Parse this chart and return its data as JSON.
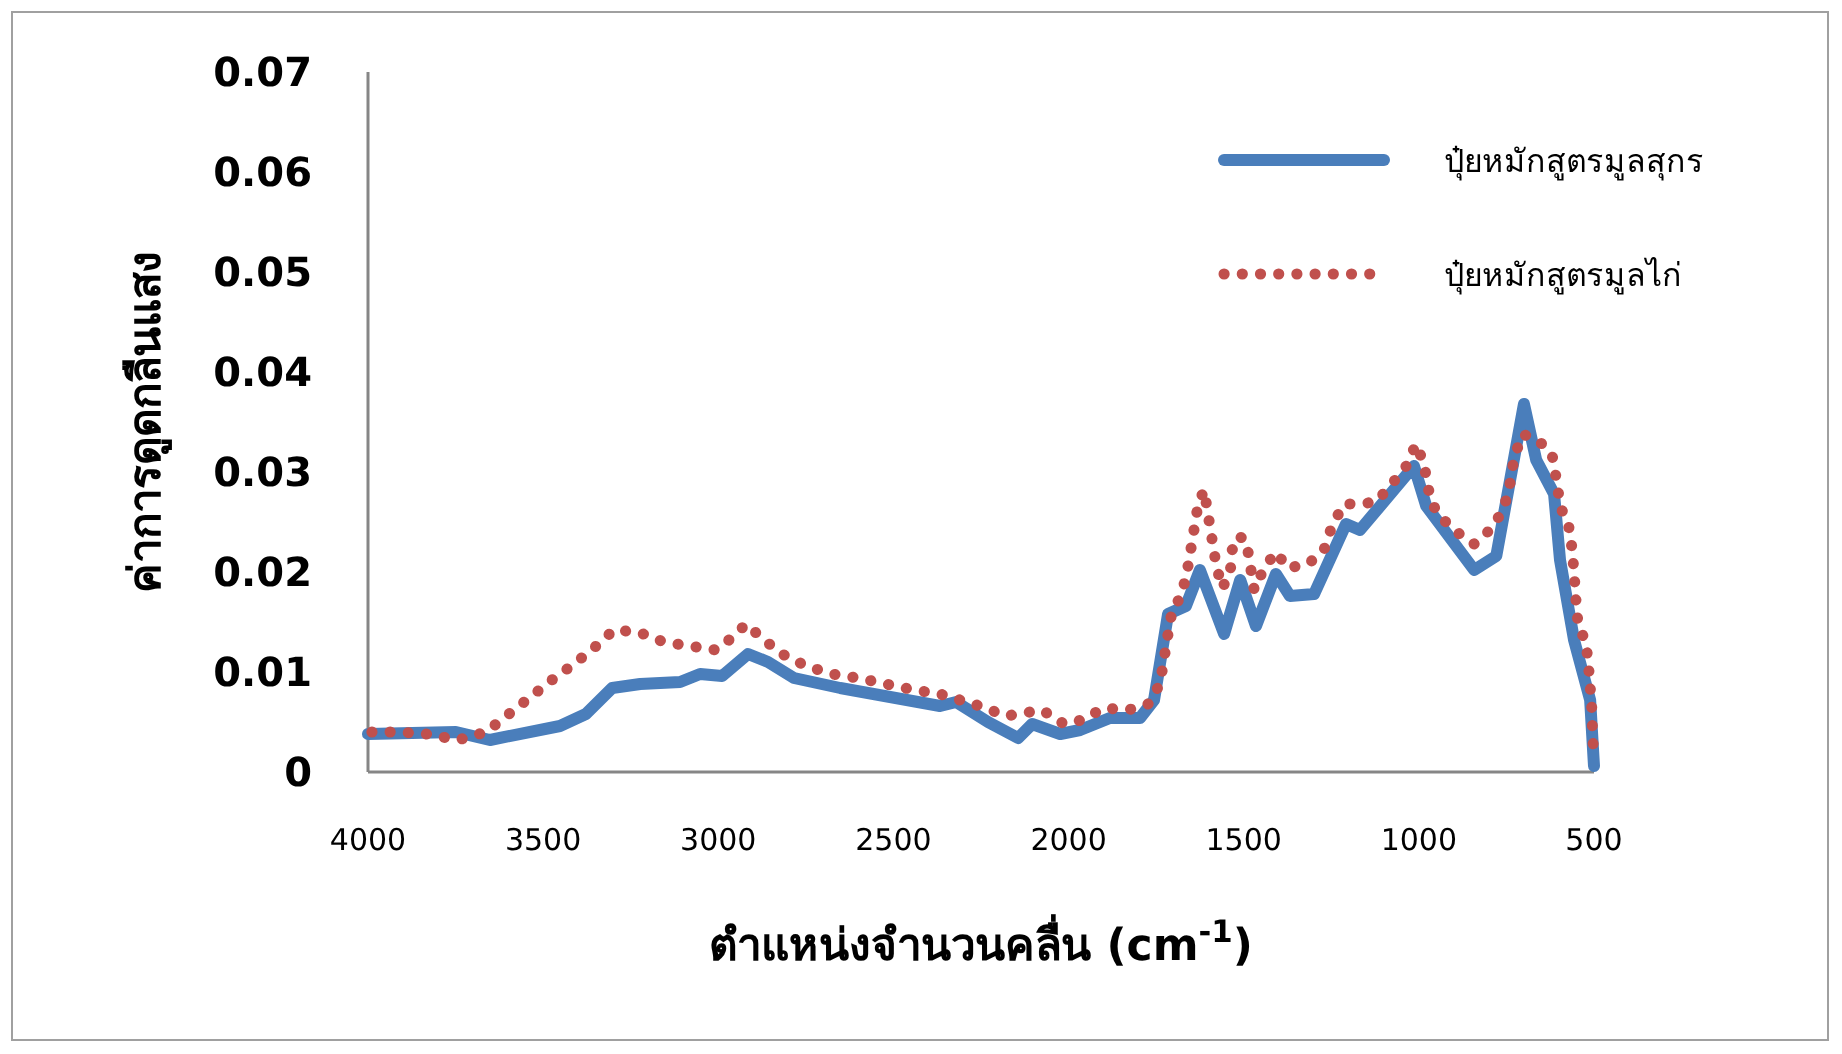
{
  "chart_data": {
    "type": "line",
    "xlabel": "ตำแหน่งจำนวนคลื่น (cm$^{-1}$)",
    "ylabel": "ค่าการดูดกลืนแสง",
    "xlim": [
      4000,
      500
    ],
    "xticks": [
      4000,
      3500,
      3000,
      2500,
      2000,
      1500,
      1000,
      500
    ],
    "ylim": [
      0,
      0.07
    ],
    "yticks": [
      0,
      0.01,
      0.02,
      0.03,
      0.04,
      0.05,
      0.06,
      0.07
    ],
    "legend": "top right",
    "grid": false,
    "marker": "none",
    "series": [
      {
        "name": "ปุ๋ยหมักสูตรมูลสุกร",
        "color": "#4a7ebb",
        "line_style": "solid",
        "x": [
          4000,
          3749,
          3652,
          3452,
          3378,
          3303,
          3223,
          3109,
          3052,
          2989,
          2915,
          2858,
          2784,
          2652,
          2367,
          2321,
          2230,
          2144,
          2104,
          2024,
          1967,
          1882,
          1796,
          1756,
          1716,
          1665,
          1625,
          1556,
          1510,
          1465,
          1408,
          1368,
          1299,
          1208,
          1168,
          1014,
          979,
          842,
          779,
          700,
          665,
          614,
          597,
          557,
          511,
          500
        ],
        "values": [
          0.0038,
          0.004,
          0.0032,
          0.0046,
          0.0058,
          0.0084,
          0.0088,
          0.009,
          0.0098,
          0.0096,
          0.0118,
          0.011,
          0.0094,
          0.0084,
          0.0066,
          0.007,
          0.005,
          0.0034,
          0.0048,
          0.0038,
          0.0042,
          0.0054,
          0.0054,
          0.0072,
          0.0158,
          0.0166,
          0.0202,
          0.0138,
          0.0192,
          0.0146,
          0.0198,
          0.0176,
          0.0178,
          0.0248,
          0.0242,
          0.0306,
          0.0266,
          0.0202,
          0.0216,
          0.0368,
          0.0312,
          0.0278,
          0.0212,
          0.0132,
          0.0072,
          0.0006
        ]
      },
      {
        "name": "ปุ๋ยหมักสูตรมูลไก่",
        "color": "#c0504d",
        "line_style": "dotted",
        "x": [
          3989,
          3914,
          3834,
          3743,
          3663,
          3583,
          3475,
          3412,
          3355,
          3298,
          3229,
          3155,
          3081,
          3006,
          2955,
          2921,
          2869,
          2818,
          2749,
          2675,
          2601,
          2521,
          2441,
          2367,
          2253,
          2178,
          2076,
          2013,
          1962,
          1899,
          1830,
          1773,
          1739,
          1727,
          1716,
          1704,
          1682,
          1665,
          1653,
          1642,
          1630,
          1613,
          1602,
          1590,
          1579,
          1562,
          1539,
          1533,
          1516,
          1493,
          1482,
          1470,
          1442,
          1408,
          1374,
          1316,
          1271,
          1248,
          1214,
          1174,
          1122,
          1082,
          1036,
          1008,
          985,
          974,
          951,
          900,
          842,
          791,
          757,
          740,
          728,
          705,
          660,
          620,
          608,
          597,
          586,
          574,
          563,
          557,
          552,
          546,
          523,
          517,
          511,
          506,
          504,
          500
        ],
        "values": [
          0.004,
          0.004,
          0.0038,
          0.0032,
          0.004,
          0.0062,
          0.0092,
          0.0108,
          0.0124,
          0.0142,
          0.014,
          0.013,
          0.0126,
          0.0122,
          0.0136,
          0.0148,
          0.0132,
          0.0118,
          0.0106,
          0.0098,
          0.0094,
          0.0088,
          0.0082,
          0.0078,
          0.0066,
          0.0056,
          0.0062,
          0.0048,
          0.0052,
          0.0064,
          0.0062,
          0.0068,
          0.0088,
          0.0114,
          0.0138,
          0.0162,
          0.0174,
          0.0194,
          0.0218,
          0.0242,
          0.0268,
          0.0282,
          0.0258,
          0.0232,
          0.0208,
          0.0184,
          0.0198,
          0.0222,
          0.0236,
          0.0232,
          0.0208,
          0.0182,
          0.0204,
          0.022,
          0.0204,
          0.0208,
          0.0222,
          0.0246,
          0.0268,
          0.0268,
          0.027,
          0.0286,
          0.0306,
          0.0328,
          0.0308,
          0.0284,
          0.026,
          0.0242,
          0.0228,
          0.0244,
          0.0264,
          0.0288,
          0.0314,
          0.0338,
          0.0332,
          0.0318,
          0.0294,
          0.0268,
          0.0256,
          0.025,
          0.0224,
          0.02,
          0.0174,
          0.015,
          0.0128,
          0.0112,
          0.0086,
          0.0062,
          0.0038,
          0.0012
        ]
      }
    ]
  }
}
